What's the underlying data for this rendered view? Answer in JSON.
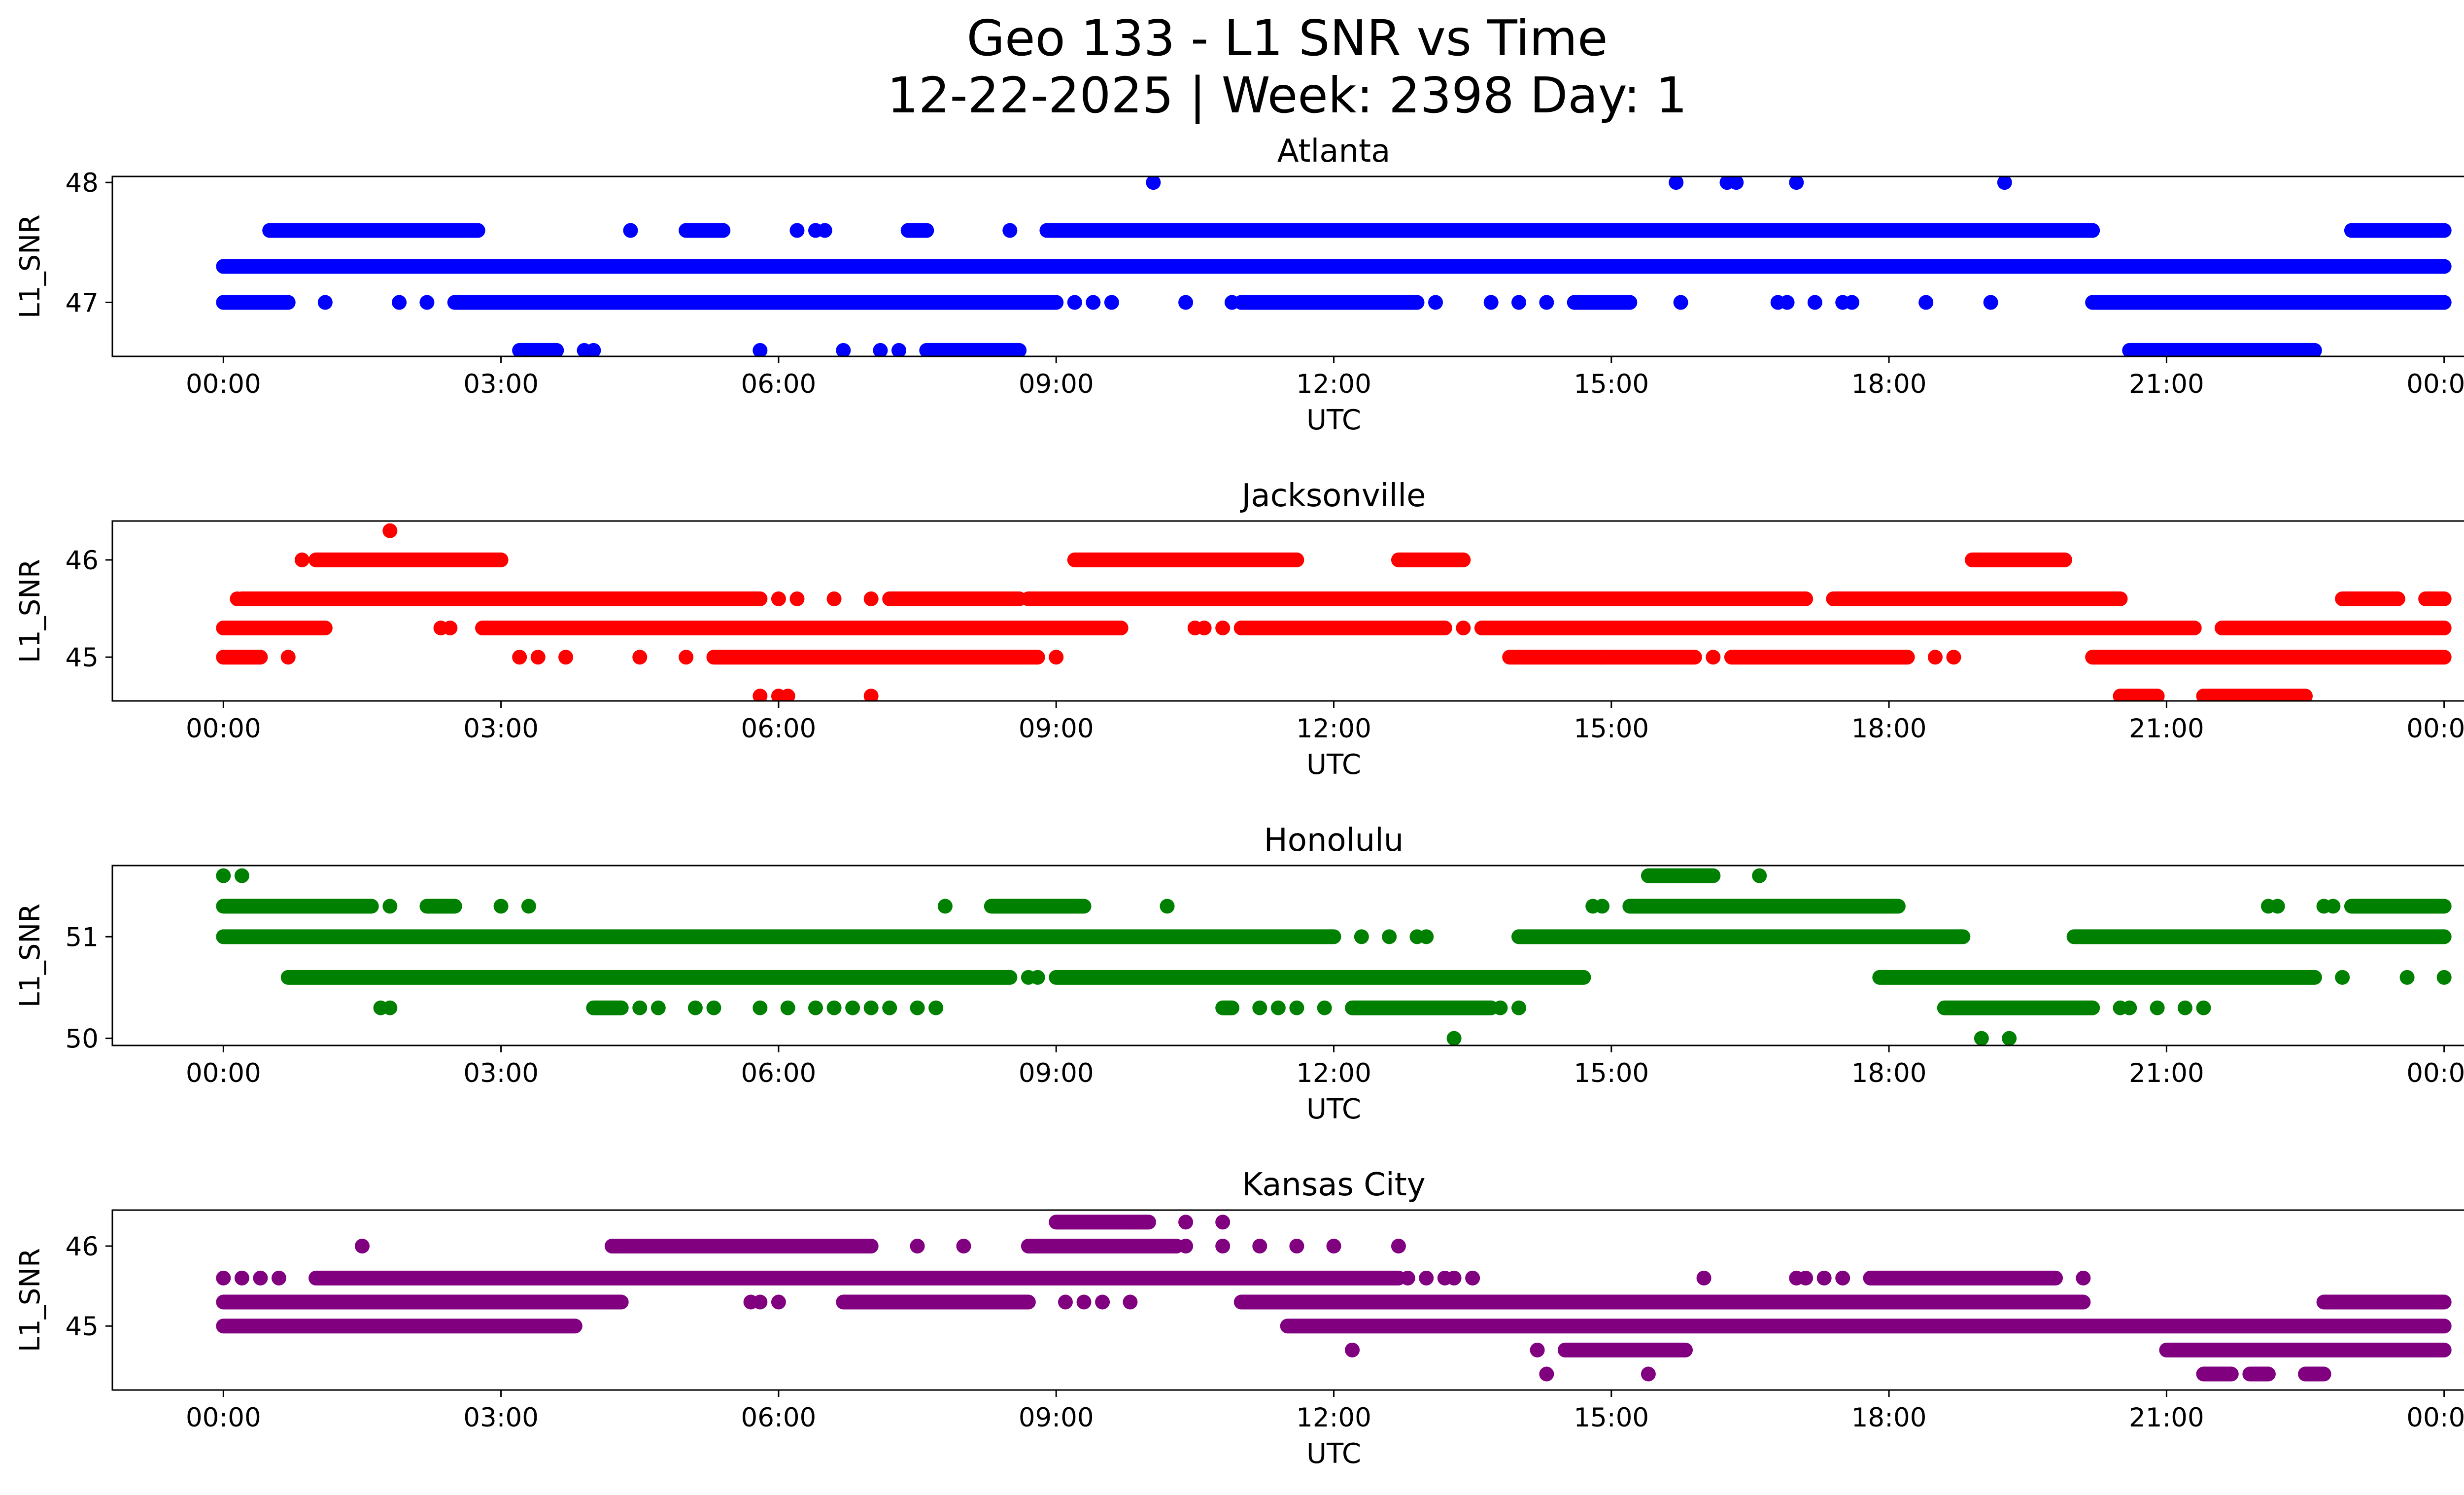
{
  "chart_data": {
    "type": "scatter",
    "title_line1": "Geo 133 - L1 SNR vs Time",
    "title_line2": "12-22-2025 | Week: 2398 Day: 1",
    "xlabel": "UTC",
    "ylabel": "L1_SNR",
    "x_unit": "hours",
    "xlim": [
      -1.2,
      25.2
    ],
    "x_ticks": [
      0,
      3,
      6,
      9,
      12,
      15,
      18,
      21,
      24
    ],
    "x_tick_labels": [
      "00:00",
      "03:00",
      "06:00",
      "09:00",
      "12:00",
      "15:00",
      "18:00",
      "21:00",
      "00:00"
    ],
    "subplots": [
      {
        "title": "Atlanta",
        "color": "#0000ff",
        "ylim": [
          46.55,
          48.05
        ],
        "y_ticks": [
          47,
          48
        ],
        "y_tick_labels": [
          "47",
          "48"
        ],
        "levels": [
          {
            "y": 47.3,
            "runs": [
              [
                0.0,
                24.0
              ]
            ],
            "singles": []
          },
          {
            "y": 47.0,
            "runs": [
              [
                0.0,
                0.7
              ],
              [
                2.5,
                9.0
              ],
              [
                11.0,
                12.9
              ],
              [
                14.6,
                15.2
              ],
              [
                20.2,
                24.0
              ]
            ],
            "singles": [
              1.1,
              1.9,
              2.2,
              9.2,
              9.4,
              9.6,
              10.4,
              10.9,
              13.1,
              13.7,
              14.0,
              14.3,
              15.75,
              16.8,
              16.9,
              17.2,
              17.5,
              17.6,
              18.4,
              19.1
            ]
          },
          {
            "y": 47.6,
            "runs": [
              [
                0.5,
                2.75
              ],
              [
                5.0,
                5.4
              ],
              [
                7.4,
                7.6
              ],
              [
                8.9,
                20.2
              ],
              [
                23.0,
                24.0
              ]
            ],
            "singles": [
              4.4,
              6.2,
              6.4,
              6.5,
              8.5
            ]
          },
          {
            "y": 46.6,
            "runs": [
              [
                3.2,
                3.6
              ],
              [
                7.6,
                8.6
              ],
              [
                20.6,
                22.6
              ]
            ],
            "singles": [
              3.9,
              4.0,
              5.8,
              6.7,
              7.1,
              7.3
            ]
          },
          {
            "y": 48.0,
            "runs": [],
            "singles": [
              10.05,
              15.7,
              16.25,
              16.35,
              17.0,
              19.25
            ]
          }
        ]
      },
      {
        "title": "Jacksonville",
        "color": "#ff0000",
        "ylim": [
          44.55,
          46.4
        ],
        "y_ticks": [
          45,
          46
        ],
        "y_tick_labels": [
          "45",
          "46"
        ],
        "levels": [
          {
            "y": 45.6,
            "runs": [
              [
                0.2,
                5.8
              ],
              [
                7.2,
                8.6
              ],
              [
                8.7,
                17.1
              ],
              [
                17.4,
                20.5
              ],
              [
                22.9,
                23.5
              ],
              [
                23.8,
                24.0
              ]
            ],
            "singles": [
              0.15,
              6.0,
              6.2,
              6.6,
              7.0
            ]
          },
          {
            "y": 45.3,
            "runs": [
              [
                0.0,
                1.1
              ],
              [
                2.8,
                9.7
              ],
              [
                11.0,
                13.2
              ],
              [
                13.6,
                21.3
              ],
              [
                21.6,
                24.0
              ]
            ],
            "singles": [
              2.35,
              2.45,
              10.5,
              10.6,
              10.8,
              13.4
            ]
          },
          {
            "y": 45.0,
            "runs": [
              [
                0.0,
                0.4
              ],
              [
                5.3,
                8.8
              ],
              [
                13.9,
                15.9
              ],
              [
                16.3,
                18.2
              ],
              [
                20.2,
                24.0
              ]
            ],
            "singles": [
              0.7,
              3.2,
              3.4,
              3.7,
              4.5,
              5.0,
              9.0,
              14.9,
              16.1,
              18.5,
              18.7
            ]
          },
          {
            "y": 46.0,
            "runs": [
              [
                1.0,
                3.0
              ],
              [
                9.2,
                11.6
              ],
              [
                12.7,
                13.4
              ],
              [
                18.9,
                19.9
              ]
            ],
            "singles": [
              0.85
            ]
          },
          {
            "y": 44.6,
            "runs": [
              [
                20.5,
                20.9
              ],
              [
                21.4,
                22.5
              ]
            ],
            "singles": [
              5.8,
              6.0,
              6.1,
              7.0
            ]
          },
          {
            "y": 46.3,
            "runs": [],
            "singles": [
              1.8
            ]
          }
        ]
      },
      {
        "title": "Honolulu",
        "color": "#008000",
        "ylim": [
          49.93,
          51.7
        ],
        "y_ticks": [
          50,
          51
        ],
        "y_tick_labels": [
          "50",
          "51"
        ],
        "levels": [
          {
            "y": 51.3,
            "runs": [
              [
                0.0,
                1.6
              ],
              [
                2.2,
                2.5
              ],
              [
                8.3,
                9.3
              ],
              [
                15.2,
                18.1
              ],
              [
                23.0,
                24.0
              ]
            ],
            "singles": [
              1.8,
              3.0,
              3.3,
              7.8,
              10.2,
              14.8,
              14.9,
              22.1,
              22.2,
              22.7,
              22.8
            ]
          },
          {
            "y": 51.0,
            "runs": [
              [
                0.0,
                12.0
              ],
              [
                14.0,
                18.8
              ],
              [
                20.0,
                24.0
              ]
            ],
            "singles": [
              12.3,
              12.6,
              12.9,
              13.0
            ]
          },
          {
            "y": 50.6,
            "runs": [
              [
                0.7,
                8.5
              ],
              [
                9.0,
                14.7
              ],
              [
                17.9,
                22.6
              ]
            ],
            "singles": [
              8.7,
              8.8,
              22.9,
              23.6,
              24.0
            ]
          },
          {
            "y": 50.3,
            "runs": [
              [
                4.0,
                4.3
              ],
              [
                10.8,
                10.9
              ],
              [
                12.2,
                13.7
              ],
              [
                18.6,
                20.2
              ]
            ],
            "singles": [
              1.7,
              1.8,
              4.5,
              4.7,
              5.1,
              5.3,
              5.8,
              6.1,
              6.4,
              6.6,
              6.8,
              7.0,
              7.2,
              7.5,
              7.7,
              11.2,
              11.4,
              11.6,
              11.9,
              13.8,
              14.0,
              20.5,
              20.6,
              20.9,
              21.2,
              21.4
            ]
          },
          {
            "y": 51.6,
            "runs": [
              [
                15.4,
                16.1
              ]
            ],
            "singles": [
              0.0,
              0.2,
              16.6
            ]
          },
          {
            "y": 50.0,
            "runs": [],
            "singles": [
              13.3,
              19.0,
              19.3
            ]
          }
        ]
      },
      {
        "title": "Kansas City",
        "color": "#800080",
        "ylim": [
          44.2,
          46.45
        ],
        "y_ticks": [
          45,
          46
        ],
        "y_tick_labels": [
          "45",
          "46"
        ],
        "levels": [
          {
            "y": 45.6,
            "runs": [
              [
                1.0,
                12.7
              ],
              [
                17.8,
                19.8
              ]
            ],
            "singles": [
              0.0,
              0.2,
              0.4,
              0.6,
              12.8,
              13.0,
              13.2,
              13.3,
              13.5,
              16.0,
              17.0,
              17.1,
              17.3,
              17.5,
              20.1
            ]
          },
          {
            "y": 45.3,
            "runs": [
              [
                0.0,
                4.3
              ],
              [
                6.7,
                8.7
              ],
              [
                11.0,
                20.1
              ],
              [
                22.7,
                24.0
              ]
            ],
            "singles": [
              5.7,
              5.8,
              6.0,
              9.1,
              9.3,
              9.5,
              9.8
            ]
          },
          {
            "y": 45.0,
            "runs": [
              [
                0.0,
                3.8
              ],
              [
                11.5,
                24.0
              ]
            ],
            "singles": []
          },
          {
            "y": 46.0,
            "runs": [
              [
                4.2,
                7.0
              ],
              [
                8.7,
                10.3
              ]
            ],
            "singles": [
              1.5,
              7.5,
              8.0,
              10.4,
              10.8,
              11.2,
              11.6,
              12.0,
              12.7
            ]
          },
          {
            "y": 44.7,
            "runs": [
              [
                14.5,
                15.8
              ],
              [
                21.0,
                24.0
              ]
            ],
            "singles": [
              12.2,
              14.2
            ]
          },
          {
            "y": 46.3,
            "runs": [
              [
                9.0,
                10.0
              ]
            ],
            "singles": [
              10.4,
              10.8
            ]
          },
          {
            "y": 44.4,
            "runs": [
              [
                21.4,
                21.7
              ],
              [
                21.9,
                22.1
              ],
              [
                22.5,
                22.7
              ]
            ],
            "singles": [
              14.3,
              15.4
            ]
          }
        ]
      }
    ]
  }
}
